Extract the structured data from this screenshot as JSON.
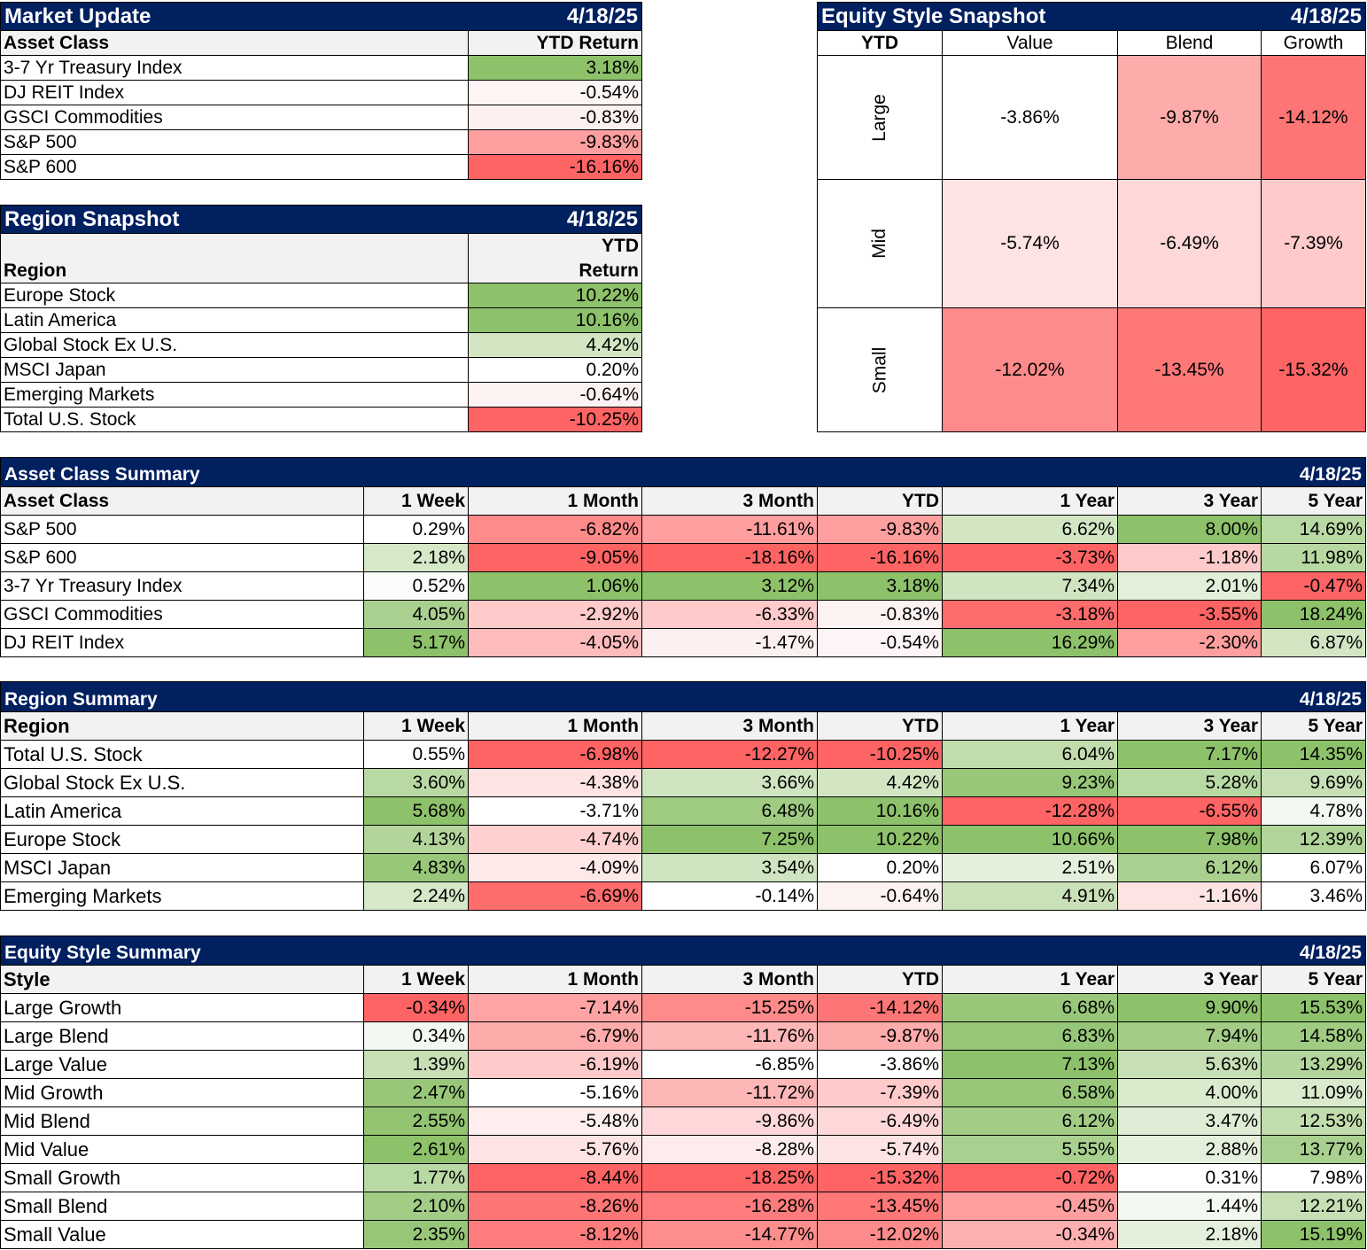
{
  "market_update": {
    "title": "Market Update",
    "date": "4/18/25",
    "col_label": "Asset Class",
    "col_value": "YTD Return",
    "rows": [
      {
        "name": "3-7 Yr Treasury Index",
        "value": "3.18%",
        "color": "#8dc16a"
      },
      {
        "name": "DJ REIT Index",
        "value": "-0.54%",
        "color": "#fdf4f4"
      },
      {
        "name": "GSCI Commodities",
        "value": "-0.83%",
        "color": "#fdf0f0"
      },
      {
        "name": "S&P 500",
        "value": "-9.83%",
        "color": "#fe9f9f"
      },
      {
        "name": "S&P 600",
        "value": "-16.16%",
        "color": "#fe6464"
      }
    ]
  },
  "region_snapshot": {
    "title": "Region Snapshot",
    "date": "4/18/25",
    "col_label": "Region",
    "col_value_line1": "YTD",
    "col_value_line2": "Return",
    "rows": [
      {
        "name": "Europe Stock",
        "value": "10.22%",
        "color": "#8dc16a"
      },
      {
        "name": "Latin America",
        "value": "10.16%",
        "color": "#8ec16b"
      },
      {
        "name": "Global Stock Ex U.S.",
        "value": "4.42%",
        "color": "#d2e6c4"
      },
      {
        "name": "MSCI Japan",
        "value": "0.20%",
        "color": "#ffffff"
      },
      {
        "name": "Emerging Markets",
        "value": "-0.64%",
        "color": "#fdf2f2"
      },
      {
        "name": "Total U.S. Stock",
        "value": "-10.25%",
        "color": "#fe6464"
      }
    ]
  },
  "equity_style_snapshot": {
    "title": "Equity Style Snapshot",
    "date": "4/18/25",
    "corner_label": "YTD",
    "columns": [
      "Value",
      "Blend",
      "Growth"
    ],
    "rows": [
      {
        "size": "Large",
        "cells": [
          {
            "value": "-3.86%",
            "color": "#ffffff"
          },
          {
            "value": "-9.87%",
            "color": "#feabab"
          },
          {
            "value": "-14.12%",
            "color": "#fe7575"
          }
        ]
      },
      {
        "size": "Mid",
        "cells": [
          {
            "value": "-5.74%",
            "color": "#fee3e3"
          },
          {
            "value": "-6.49%",
            "color": "#fed8d8"
          },
          {
            "value": "-7.39%",
            "color": "#fecaca"
          }
        ]
      },
      {
        "size": "Small",
        "cells": [
          {
            "value": "-12.02%",
            "color": "#fe8b8b"
          },
          {
            "value": "-13.45%",
            "color": "#fe7878"
          },
          {
            "value": "-15.32%",
            "color": "#fe6464"
          }
        ]
      }
    ]
  },
  "period_columns": [
    "1 Week",
    "1 Month",
    "3 Month",
    "YTD",
    "1 Year",
    "3 Year",
    "5 Year"
  ],
  "asset_class_summary": {
    "title": "Asset Class Summary",
    "date": "4/18/25",
    "col_label": "Asset Class",
    "rows": [
      {
        "name": "S&P 500",
        "values": [
          "0.29%",
          "-6.82%",
          "-11.61%",
          "-9.83%",
          "6.62%",
          "8.00%",
          "14.69%"
        ],
        "colors": [
          "#ffffff",
          "#fe8a8a",
          "#fe9e9e",
          "#fe9f9f",
          "#d2e6c4",
          "#8dc16a",
          "#b9d9a4"
        ]
      },
      {
        "name": "S&P 600",
        "values": [
          "2.18%",
          "-9.05%",
          "-18.16%",
          "-16.16%",
          "-3.73%",
          "-1.18%",
          "11.98%"
        ],
        "colors": [
          "#d5e8c8",
          "#fe6464",
          "#fe6464",
          "#fe6464",
          "#fe6464",
          "#fecaca",
          "#b8d8a2"
        ]
      },
      {
        "name": "3-7 Yr Treasury Index",
        "values": [
          "0.52%",
          "1.06%",
          "3.12%",
          "3.18%",
          "7.34%",
          "2.01%",
          "-0.47%"
        ],
        "colors": [
          "#fbfdfa",
          "#8dc16a",
          "#8dc16a",
          "#8dc16a",
          "#cfe4c0",
          "#e2efd9",
          "#fe6464"
        ]
      },
      {
        "name": "GSCI Commodities",
        "values": [
          "4.05%",
          "-2.92%",
          "-6.33%",
          "-0.83%",
          "-3.18%",
          "-3.55%",
          "18.24%"
        ],
        "colors": [
          "#a9d08e",
          "#fecaca",
          "#fecaca",
          "#fdf2f2",
          "#fe6c6c",
          "#fe6464",
          "#8dc16a"
        ]
      },
      {
        "name": "DJ REIT Index",
        "values": [
          "5.17%",
          "-4.05%",
          "-1.47%",
          "-0.54%",
          "16.29%",
          "-2.30%",
          "6.87%"
        ],
        "colors": [
          "#8dc16a",
          "#febbbb",
          "#fdf0f0",
          "#fdf5f5",
          "#8dc16a",
          "#fe9e9e",
          "#d2e6c4"
        ]
      }
    ]
  },
  "region_summary": {
    "title": "Region Summary",
    "date": "4/18/25",
    "col_label": "Region",
    "rows": [
      {
        "name": "Total U.S. Stock",
        "values": [
          "0.55%",
          "-6.98%",
          "-12.27%",
          "-10.25%",
          "6.04%",
          "7.17%",
          "14.35%"
        ],
        "colors": [
          "#ffffff",
          "#fe6464",
          "#fe6464",
          "#fe6464",
          "#c1dcad",
          "#8dc16a",
          "#8dc16a"
        ]
      },
      {
        "name": "Global Stock Ex U.S.",
        "values": [
          "3.60%",
          "-4.38%",
          "3.66%",
          "4.42%",
          "9.23%",
          "5.28%",
          "9.69%"
        ],
        "colors": [
          "#b9d9a4",
          "#fee3e3",
          "#cfe4c0",
          "#d2e6c4",
          "#98c779",
          "#b9d9a4",
          "#c6dfb5"
        ]
      },
      {
        "name": "Latin America",
        "values": [
          "5.68%",
          "-3.71%",
          "6.48%",
          "10.16%",
          "-12.28%",
          "-6.55%",
          "4.78%"
        ],
        "colors": [
          "#8dc16a",
          "#ffffff",
          "#9fcb82",
          "#8ec16b",
          "#fe6464",
          "#fe6464",
          "#f3f8f0"
        ]
      },
      {
        "name": "Europe Stock",
        "values": [
          "4.13%",
          "-4.74%",
          "7.25%",
          "10.22%",
          "10.66%",
          "7.98%",
          "12.39%"
        ],
        "colors": [
          "#b3d59c",
          "#fed0d0",
          "#8dc16a",
          "#8dc16a",
          "#8dc16a",
          "#8dc16a",
          "#b0d499"
        ]
      },
      {
        "name": "MSCI Japan",
        "values": [
          "4.83%",
          "-4.09%",
          "3.54%",
          "0.20%",
          "2.51%",
          "6.12%",
          "6.07%"
        ],
        "colors": [
          "#98c779",
          "#fee9e9",
          "#cfe4c0",
          "#ffffff",
          "#e5f0dc",
          "#a9d08e",
          "#ffffff"
        ]
      },
      {
        "name": "Emerging Markets",
        "values": [
          "2.24%",
          "-6.69%",
          "-0.14%",
          "-0.64%",
          "4.91%",
          "-1.16%",
          "3.46%"
        ],
        "colors": [
          "#d5e8c8",
          "#fe6c6c",
          "#ffffff",
          "#fdf2f2",
          "#c9e1b8",
          "#fee3e3",
          "#ffffff"
        ]
      }
    ]
  },
  "equity_style_summary": {
    "title": "Equity Style Summary",
    "date": "4/18/25",
    "col_label": "Style",
    "rows": [
      {
        "name": "Large Growth",
        "values": [
          "-0.34%",
          "-7.14%",
          "-15.25%",
          "-14.12%",
          "6.68%",
          "9.90%",
          "15.53%"
        ],
        "colors": [
          "#fe6464",
          "#fea4a4",
          "#fe8a8a",
          "#fe7575",
          "#98c779",
          "#8dc16a",
          "#8dc16a"
        ]
      },
      {
        "name": "Large Blend",
        "values": [
          "0.34%",
          "-6.79%",
          "-11.76%",
          "-9.87%",
          "6.83%",
          "7.94%",
          "14.58%"
        ],
        "colors": [
          "#f3f8f0",
          "#feabab",
          "#feb7b7",
          "#feabab",
          "#96c677",
          "#a3cd87",
          "#9fcb82"
        ]
      },
      {
        "name": "Large Value",
        "values": [
          "1.39%",
          "-6.19%",
          "-6.85%",
          "-3.86%",
          "7.13%",
          "5.63%",
          "13.29%"
        ],
        "colors": [
          "#c6dfb5",
          "#fecaca",
          "#ffffff",
          "#ffffff",
          "#8dc16a",
          "#c6dfb5",
          "#b3d59c"
        ]
      },
      {
        "name": "Mid Growth",
        "values": [
          "2.47%",
          "-5.16%",
          "-11.72%",
          "-7.39%",
          "6.58%",
          "4.00%",
          "11.09%"
        ],
        "colors": [
          "#98c779",
          "#ffffff",
          "#feb7b7",
          "#fecaca",
          "#98c779",
          "#d9eacd",
          "#d9eacd"
        ]
      },
      {
        "name": "Mid Blend",
        "values": [
          "2.55%",
          "-5.48%",
          "-9.86%",
          "-6.49%",
          "6.12%",
          "3.47%",
          "12.53%"
        ],
        "colors": [
          "#92c472",
          "#feeeee",
          "#fed8d8",
          "#fed8d8",
          "#a3cd87",
          "#e0edd6",
          "#c1dcad"
        ]
      },
      {
        "name": "Mid Value",
        "values": [
          "2.61%",
          "-5.76%",
          "-8.28%",
          "-5.74%",
          "5.55%",
          "2.88%",
          "13.77%"
        ],
        "colors": [
          "#8dc16a",
          "#fee3e3",
          "#feecec",
          "#fee3e3",
          "#a9d08e",
          "#e5f0dc",
          "#a9d08e"
        ]
      },
      {
        "name": "Small Growth",
        "values": [
          "1.77%",
          "-8.44%",
          "-18.25%",
          "-15.32%",
          "-0.72%",
          "0.31%",
          "7.98%"
        ],
        "colors": [
          "#b9d9a4",
          "#fe6464",
          "#fe6464",
          "#fe6464",
          "#fe6464",
          "#ffffff",
          "#ffffff"
        ]
      },
      {
        "name": "Small Blend",
        "values": [
          "2.10%",
          "-8.26%",
          "-16.28%",
          "-13.45%",
          "-0.45%",
          "1.44%",
          "12.21%"
        ],
        "colors": [
          "#a3cd87",
          "#fe7575",
          "#fe7c7c",
          "#fe7878",
          "#fe9e9e",
          "#f3f8f0",
          "#c6dfb5"
        ]
      },
      {
        "name": "Small Value",
        "values": [
          "2.35%",
          "-8.12%",
          "-14.77%",
          "-12.02%",
          "-0.34%",
          "2.18%",
          "15.19%"
        ],
        "colors": [
          "#98c779",
          "#fe7c7c",
          "#fe8e8e",
          "#fe8b8b",
          "#feb0b0",
          "#e5f0dc",
          "#8dc16a"
        ]
      }
    ]
  }
}
